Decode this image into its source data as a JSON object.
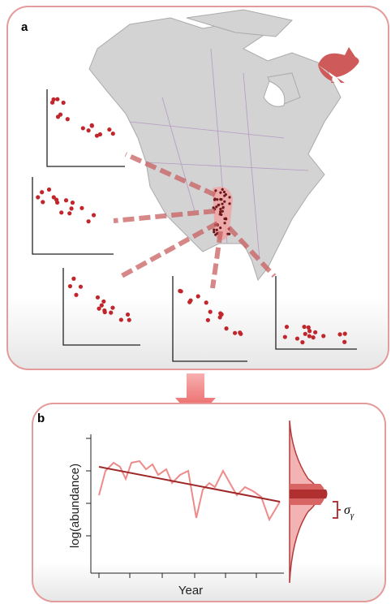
{
  "panel_a": {
    "label": "a"
  },
  "panel_b": {
    "label": "b",
    "y_axis_label": "log(abundance)",
    "x_axis_label": "Year",
    "sigma_symbol": "σ",
    "sigma_subscript": "γ"
  }
}
